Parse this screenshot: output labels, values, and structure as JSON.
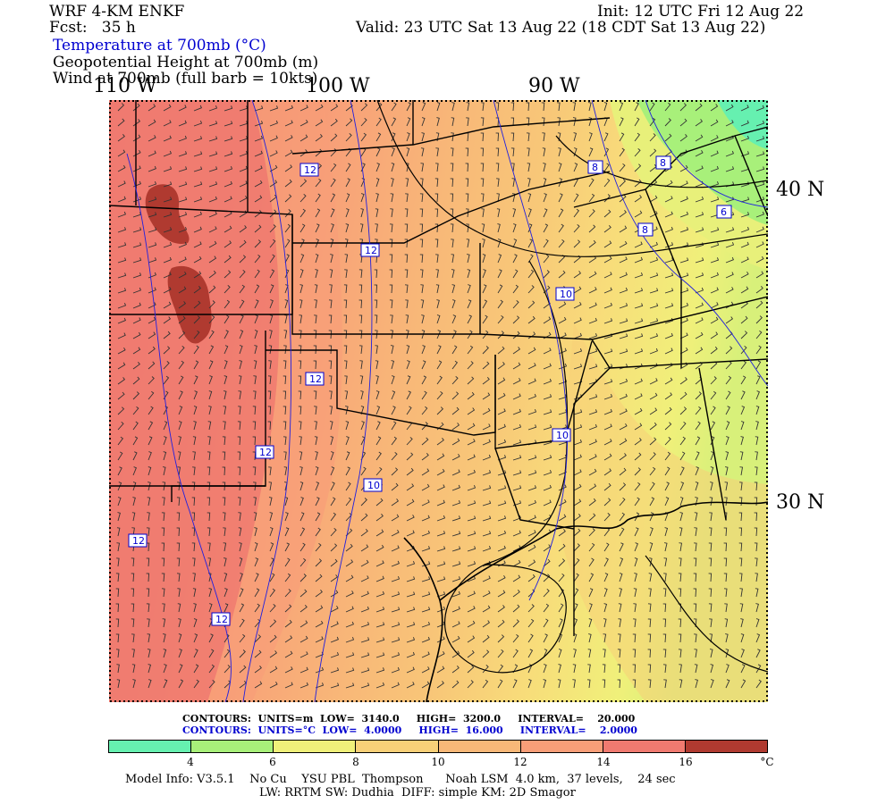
{
  "header": {
    "model": "WRF 4-KM ENKF",
    "forecast": "Fcst:   35 h",
    "init": "Init: 12 UTC Fri 12 Aug 22",
    "valid": "Valid: 23 UTC Sat 13 Aug 22 (18 CDT Sat 13 Aug 22)",
    "field_temp": "Temperature at 700mb (°C)",
    "field_height": "Geopotential Height at 700mb (m)",
    "field_wind": "Wind at 700mb (full barb = 10kts)"
  },
  "map": {
    "lon_labels": [
      "110 W",
      "100 W",
      "90 W"
    ],
    "lat_labels": [
      "40 N",
      "30 N"
    ],
    "temp_contour_labels": [
      "12",
      "12",
      "12",
      "12",
      "12",
      "12",
      "10",
      "10",
      "10",
      "8",
      "8",
      "8",
      "6"
    ],
    "colors": {
      "lt4": "#66f0b0",
      "4to6": "#a8f07a",
      "6to8": "#f0f07a",
      "8to10": "#f8d078",
      "10to12": "#f8b878",
      "12to14": "#f89e78",
      "14to16": "#f07a70",
      "gt16": "#b03a30"
    }
  },
  "contour_info": {
    "height_line": "CONTOURS:  UNITS=m  LOW=  3140.0     HIGH=  3200.0     INTERVAL=    20.000",
    "temp_line": "CONTOURS:  UNITS=°C  LOW=  4.0000     HIGH=  16.000     INTERVAL=    2.0000"
  },
  "colorbar": {
    "colors": [
      "#66f0b0",
      "#a8f07a",
      "#f0f07a",
      "#f8d078",
      "#f8b878",
      "#f89e78",
      "#f07a70",
      "#b03a30"
    ],
    "labels": [
      "4",
      "6",
      "8",
      "10",
      "12",
      "14",
      "16"
    ],
    "unit": "°C"
  },
  "model_info": {
    "line1": "Model Info: V3.5.1    No Cu    YSU PBL  Thompson      Noah LSM  4.0 km,  37 levels,    24 sec",
    "line2": "LW: RRTM SW: Dudhia  DIFF: simple KM: 2D Smagor"
  }
}
